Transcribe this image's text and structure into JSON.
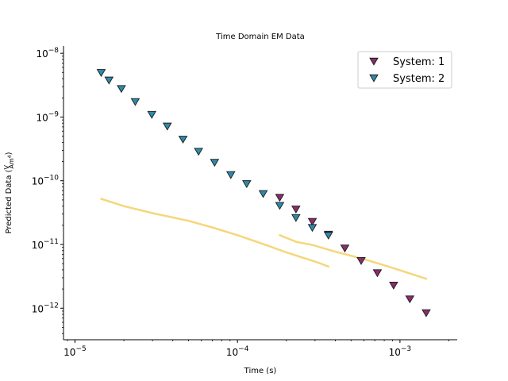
{
  "chart_data": {
    "type": "scatter",
    "title": "Time Domain EM Data",
    "xlabel": "Time (s)",
    "ylabel_main": "Predicted Data (",
    "ylabel_frac_num": "V",
    "ylabel_frac_den": "Am",
    "ylabel_frac_den_sup": "4",
    "ylabel_close": ")",
    "x_scale": "log",
    "y_scale": "log",
    "xlim": [
      8.5e-06,
      0.00225
    ],
    "ylim": [
      3.2e-13,
      1.3e-08
    ],
    "grid": false,
    "legend_placement": "top-right",
    "x_ticks": [
      {
        "value": 1e-05,
        "base": "10",
        "exp": "−5"
      },
      {
        "value": 0.0001,
        "base": "10",
        "exp": "−4"
      },
      {
        "value": 0.001,
        "base": "10",
        "exp": "−3"
      }
    ],
    "y_ticks": [
      {
        "value": 1e-08,
        "base": "10",
        "exp": "−8"
      },
      {
        "value": 1e-09,
        "base": "10",
        "exp": "−9"
      },
      {
        "value": 1e-10,
        "base": "10",
        "exp": "−10"
      },
      {
        "value": 1e-11,
        "base": "10",
        "exp": "−11"
      },
      {
        "value": 1e-12,
        "base": "10",
        "exp": "−12"
      }
    ],
    "series": [
      {
        "name": "System: 1",
        "color": "#8b2d6b",
        "marker": "triangle-down",
        "x": [
          0.000182,
          0.000229,
          0.000289,
          0.000363,
          0.000458,
          0.000577,
          0.000726,
          0.000914,
          0.00115,
          0.00145
        ],
        "y": [
          5.5e-11,
          3.6e-11,
          2.3e-11,
          1.45e-11,
          8.8e-12,
          5.6e-12,
          3.6e-12,
          2.3e-12,
          1.4e-12,
          8.5e-13
        ]
      },
      {
        "name": "System: 2",
        "color": "#2e8aa8",
        "marker": "triangle-down",
        "x": [
          1.45e-05,
          1.62e-05,
          1.93e-05,
          2.35e-05,
          2.97e-05,
          3.7e-05,
          4.62e-05,
          5.76e-05,
          7.23e-05,
          9.1e-05,
          0.000114,
          0.000144,
          0.000182,
          0.000229,
          0.000289,
          0.000363
        ],
        "y": [
          5e-09,
          3.8e-09,
          2.8e-09,
          1.75e-09,
          1.1e-09,
          7.2e-10,
          4.5e-10,
          2.9e-10,
          1.95e-10,
          1.25e-10,
          9e-11,
          6.3e-11,
          4.1e-11,
          2.65e-11,
          1.85e-11,
          1.4e-11
        ]
      }
    ],
    "lines": [
      {
        "color": "#f5d77a",
        "x": [
          1.45e-05,
          2e-05,
          3e-05,
          5e-05,
          7e-05,
          0.0001,
          0.00015,
          0.0002,
          0.0003,
          0.000363
        ],
        "y": [
          5.2e-11,
          4e-11,
          3.1e-11,
          2.35e-11,
          1.85e-11,
          1.4e-11,
          9.8e-12,
          7.5e-12,
          5.4e-12,
          4.5e-12
        ]
      },
      {
        "color": "#f5d77a",
        "x": [
          0.000182,
          0.00023,
          0.00029,
          0.0004,
          0.0006,
          0.0009,
          0.00145
        ],
        "y": [
          1.4e-11,
          1.1e-11,
          9.8e-12,
          7.7e-12,
          5.9e-12,
          4.3e-12,
          2.9e-12
        ]
      }
    ]
  }
}
